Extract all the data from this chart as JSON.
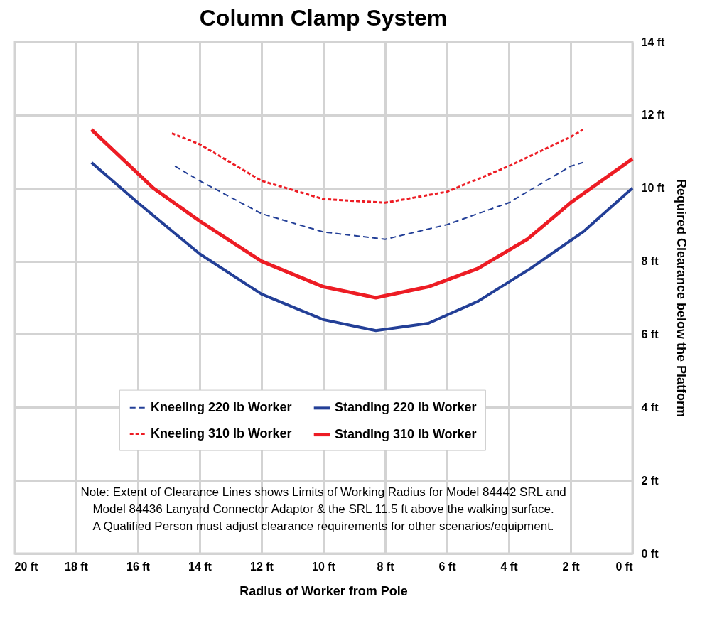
{
  "chart_data": {
    "type": "line",
    "title": "Column Clamp System",
    "xlabel": "Radius of Worker from Pole",
    "ylabel": "Required Clearance below the Platform",
    "xlim": [
      20,
      0
    ],
    "ylim": [
      0,
      14
    ],
    "xticks": [
      {
        "value": 20,
        "label": "20 ft"
      },
      {
        "value": 18,
        "label": "18 ft"
      },
      {
        "value": 16,
        "label": "16 ft"
      },
      {
        "value": 14,
        "label": "14 ft"
      },
      {
        "value": 12,
        "label": "12 ft"
      },
      {
        "value": 10,
        "label": "10 ft"
      },
      {
        "value": 8,
        "label": "8 ft"
      },
      {
        "value": 6,
        "label": "6 ft"
      },
      {
        "value": 4,
        "label": "4 ft"
      },
      {
        "value": 2,
        "label": "2 ft"
      },
      {
        "value": 0,
        "label": "0 ft"
      }
    ],
    "yticks": [
      {
        "value": 0,
        "label": "0 ft"
      },
      {
        "value": 2,
        "label": "2 ft"
      },
      {
        "value": 4,
        "label": "4 ft"
      },
      {
        "value": 6,
        "label": "6 ft"
      },
      {
        "value": 8,
        "label": "8 ft"
      },
      {
        "value": 10,
        "label": "10 ft"
      },
      {
        "value": 12,
        "label": "12 ft"
      },
      {
        "value": 14,
        "label": "14 ft"
      }
    ],
    "grid": true,
    "legend": "bottom",
    "series": [
      {
        "name": "Kneeling 220 lb Worker",
        "color": "#233f97",
        "line_style": "dashed",
        "x": [
          14.8,
          14,
          12,
          10,
          8,
          6,
          4,
          2,
          1.6
        ],
        "values": [
          10.6,
          10.2,
          9.3,
          8.8,
          8.6,
          9.0,
          9.6,
          10.6,
          10.7
        ]
      },
      {
        "name": "Kneeling 310 lb Worker",
        "color": "#ed1c24",
        "line_style": "dotted",
        "x": [
          14.9,
          14,
          12,
          10,
          8,
          6,
          4,
          2,
          1.6
        ],
        "values": [
          11.5,
          11.2,
          10.2,
          9.7,
          9.6,
          9.9,
          10.6,
          11.4,
          11.6
        ]
      },
      {
        "name": "Standing 220 lb Worker",
        "color": "#233f97",
        "line_style": "solid",
        "x": [
          17.5,
          16,
          14,
          12,
          10,
          8.3,
          6.6,
          5,
          3.3,
          1.6,
          0
        ],
        "values": [
          10.7,
          9.6,
          8.2,
          7.1,
          6.4,
          6.1,
          6.3,
          6.9,
          7.8,
          8.8,
          10.0
        ]
      },
      {
        "name": "Standing 310 lb Worker",
        "color": "#ed1c24",
        "line_style": "solid",
        "x": [
          17.5,
          15.5,
          14,
          12,
          10,
          8.3,
          6.6,
          5,
          3.4,
          2,
          0
        ],
        "values": [
          11.6,
          10.0,
          9.1,
          8.0,
          7.3,
          7.0,
          7.3,
          7.8,
          8.6,
          9.6,
          10.8
        ]
      }
    ],
    "annotations": [
      "Note: Extent of Clearance Lines shows Limits of Working Radius for Model 84442 SRL and\nModel 84436 Lanyard Connector Adaptor & the SRL 11.5 ft above the walking surface.\nA Qualified Person must adjust clearance requirements for other scenarios/equipment."
    ]
  }
}
